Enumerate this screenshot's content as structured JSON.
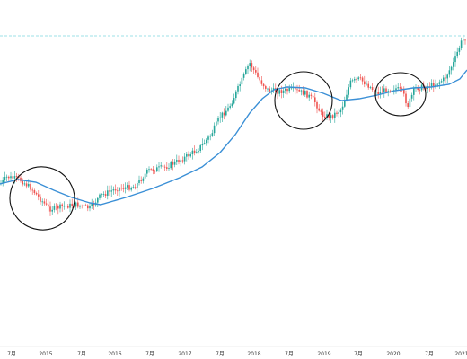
{
  "chart_data": {
    "type": "candlestick",
    "x_tick_labels": [
      "7月",
      "2015",
      "7月",
      "2016",
      "7月",
      "2017",
      "7月",
      "2018",
      "7月",
      "2019",
      "7月",
      "2020",
      "7月",
      "2021"
    ],
    "grid": false,
    "legend": "none",
    "y_scale": "log",
    "y_axis_labels_visible": false,
    "colors": {
      "up_candle": "#26a69a",
      "down_candle": "#ef5350",
      "moving_average": "#3a8fd6",
      "reference_line": "#7fd8e0",
      "circle": "#111111"
    },
    "moving_average_series_name": "",
    "annotations": [
      {
        "shape": "ellipse",
        "period": "2014-07 to 2015-07"
      },
      {
        "shape": "ellipse",
        "period": "2018-02 to 2019-01"
      },
      {
        "shape": "ellipse",
        "period": "2020-01 to 2020-07"
      }
    ],
    "reference_line": {
      "style": "dashed",
      "position": "top"
    }
  }
}
